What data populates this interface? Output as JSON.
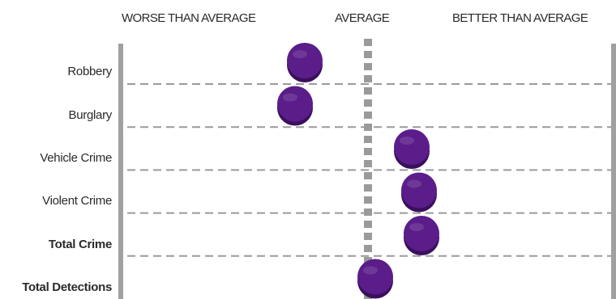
{
  "chart_data": {
    "type": "scatter",
    "column_headers": {
      "worse": "WORSE THAN AVERAGE",
      "average": "AVERAGE",
      "better": "BETTER THAN AVERAGE"
    },
    "categories": [
      "Robbery",
      "Burglary",
      "Vehicle Crime",
      "Violent Crime",
      "Total Crime",
      "Total Detections"
    ],
    "emphasized_categories": [
      "Total Crime",
      "Total Detections"
    ],
    "values": [
      -1.3,
      -1.5,
      0.9,
      1.05,
      1.1,
      0.15
    ],
    "xlim": [
      -5,
      5
    ],
    "xlabel": "",
    "ylabel": "",
    "grid": true,
    "marker_color": "#5b1d8a",
    "marker_edge_color": "#3a0f5c",
    "axis_color": "#a0a0a0",
    "average_line_color": "#9a9a9a"
  }
}
